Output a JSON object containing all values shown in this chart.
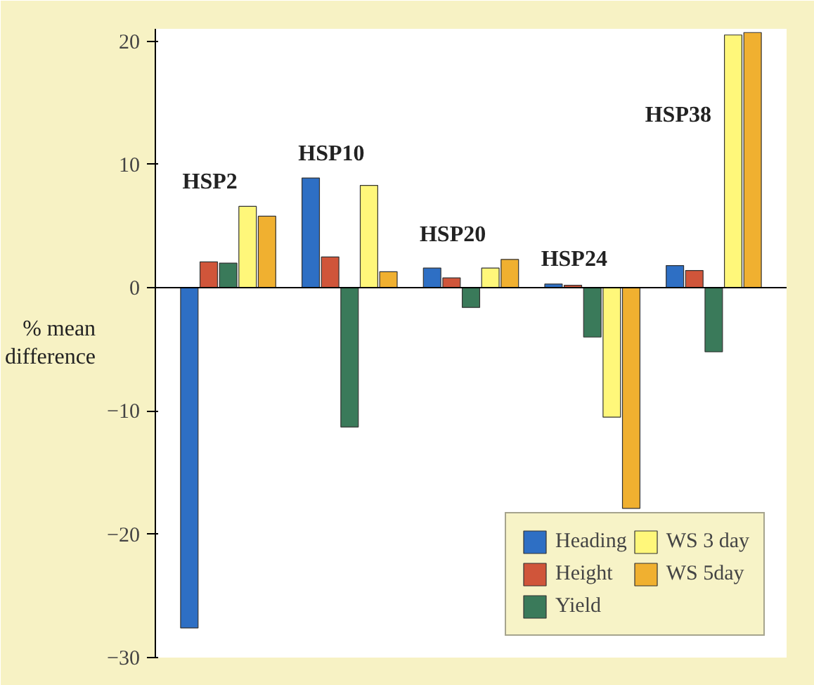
{
  "chart_data": {
    "type": "bar",
    "ylabel": "% mean difference",
    "categories": [
      "HSP2",
      "HSP10",
      "HSP20",
      "HSP24",
      "HSP38"
    ],
    "series": [
      {
        "name": "Heading",
        "color": "#2e6fc4",
        "values": [
          -27.6,
          8.9,
          1.6,
          0.3,
          1.8
        ]
      },
      {
        "name": "Height",
        "color": "#d0553a",
        "values": [
          2.1,
          2.5,
          0.8,
          0.2,
          1.4
        ]
      },
      {
        "name": "Yield",
        "color": "#3a7a5a",
        "values": [
          2.0,
          -11.3,
          -1.6,
          -4.0,
          -5.2
        ]
      },
      {
        "name": "WS 3 day",
        "color": "#fff77a",
        "values": [
          6.6,
          8.3,
          1.6,
          -10.5,
          20.5
        ]
      },
      {
        "name": "WS 5day",
        "color": "#f0b030",
        "values": [
          5.8,
          1.3,
          2.3,
          -17.9,
          20.7
        ]
      }
    ],
    "ylim": [
      -30,
      21
    ],
    "yticks": [
      -30,
      -20,
      -10,
      0,
      10,
      20
    ],
    "legend": "bottom right"
  }
}
